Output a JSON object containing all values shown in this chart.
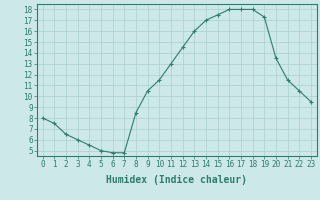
{
  "x": [
    0,
    1,
    2,
    3,
    4,
    5,
    6,
    7,
    8,
    9,
    10,
    11,
    12,
    13,
    14,
    15,
    16,
    17,
    18,
    19,
    20,
    21,
    22,
    23
  ],
  "y": [
    8,
    7.5,
    6.5,
    6,
    5.5,
    5,
    4.8,
    4.8,
    8.5,
    10.5,
    11.5,
    13,
    14.5,
    16,
    17,
    17.5,
    18,
    18,
    18,
    17.3,
    13.5,
    11.5,
    10.5,
    9.5
  ],
  "line_color": "#2d7d6e",
  "marker": "+",
  "bg_color": "#cce8e8",
  "grid_color": "#aacfcf",
  "xlabel": "Humidex (Indice chaleur)",
  "xlim": [
    -0.5,
    23.5
  ],
  "ylim": [
    4.5,
    18.5
  ],
  "yticks": [
    5,
    6,
    7,
    8,
    9,
    10,
    11,
    12,
    13,
    14,
    15,
    16,
    17,
    18
  ],
  "xticks": [
    0,
    1,
    2,
    3,
    4,
    5,
    6,
    7,
    8,
    9,
    10,
    11,
    12,
    13,
    14,
    15,
    16,
    17,
    18,
    19,
    20,
    21,
    22,
    23
  ],
  "tick_color": "#2d7d6e",
  "axis_color": "#2d7d6e",
  "label_fontsize": 5.5,
  "xlabel_fontsize": 7
}
